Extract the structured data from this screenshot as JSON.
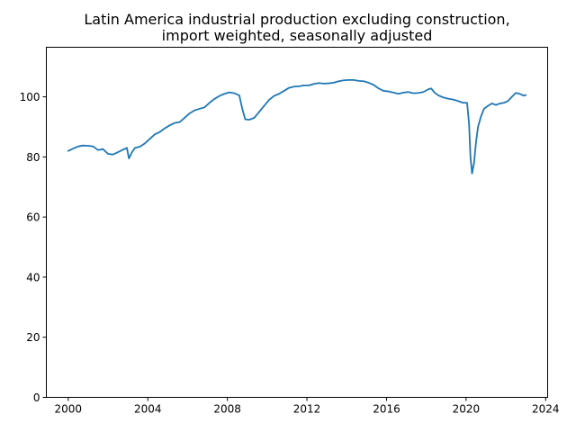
{
  "chart_data": {
    "type": "line",
    "title_lines": [
      "Latin America industrial production excluding construction,",
      "import weighted, seasonally adjusted"
    ],
    "xlabel": "",
    "ylabel": "",
    "xlim": [
      1998.9,
      2024.1
    ],
    "ylim": [
      0,
      116.5
    ],
    "x_ticks": [
      2000,
      2004,
      2008,
      2012,
      2016,
      2020,
      2024
    ],
    "x_tick_labels": [
      "2000",
      "2004",
      "2008",
      "2012",
      "2016",
      "2020",
      "2024"
    ],
    "y_ticks": [
      0,
      20,
      40,
      60,
      80,
      100
    ],
    "y_tick_labels": [
      "0",
      "20",
      "40",
      "60",
      "80",
      "100"
    ],
    "grid": false,
    "series": [
      {
        "color": "#1f77b4",
        "points": [
          [
            2000.0,
            82.0
          ],
          [
            2000.25,
            82.8
          ],
          [
            2000.5,
            83.5
          ],
          [
            2000.75,
            83.8
          ],
          [
            2001.0,
            83.7
          ],
          [
            2001.25,
            83.5
          ],
          [
            2001.5,
            82.3
          ],
          [
            2001.75,
            82.6
          ],
          [
            2002.0,
            81.0
          ],
          [
            2002.25,
            80.8
          ],
          [
            2002.5,
            81.6
          ],
          [
            2002.75,
            82.4
          ],
          [
            2002.95,
            83.0
          ],
          [
            2003.05,
            79.5
          ],
          [
            2003.2,
            81.5
          ],
          [
            2003.35,
            83.0
          ],
          [
            2003.6,
            83.4
          ],
          [
            2003.85,
            84.5
          ],
          [
            2004.1,
            86.0
          ],
          [
            2004.35,
            87.5
          ],
          [
            2004.6,
            88.3
          ],
          [
            2004.85,
            89.5
          ],
          [
            2005.1,
            90.5
          ],
          [
            2005.35,
            91.3
          ],
          [
            2005.6,
            91.6
          ],
          [
            2005.85,
            93.0
          ],
          [
            2006.1,
            94.5
          ],
          [
            2006.35,
            95.5
          ],
          [
            2006.6,
            96.0
          ],
          [
            2006.85,
            96.5
          ],
          [
            2007.1,
            98.0
          ],
          [
            2007.35,
            99.3
          ],
          [
            2007.6,
            100.3
          ],
          [
            2007.85,
            101.0
          ],
          [
            2008.1,
            101.5
          ],
          [
            2008.35,
            101.2
          ],
          [
            2008.6,
            100.5
          ],
          [
            2008.75,
            96.0
          ],
          [
            2008.9,
            92.5
          ],
          [
            2009.1,
            92.4
          ],
          [
            2009.35,
            93.0
          ],
          [
            2009.6,
            95.0
          ],
          [
            2009.85,
            97.0
          ],
          [
            2010.1,
            99.0
          ],
          [
            2010.35,
            100.3
          ],
          [
            2010.6,
            101.0
          ],
          [
            2010.85,
            102.0
          ],
          [
            2011.1,
            103.0
          ],
          [
            2011.35,
            103.4
          ],
          [
            2011.6,
            103.5
          ],
          [
            2011.85,
            103.8
          ],
          [
            2012.1,
            103.8
          ],
          [
            2012.35,
            104.3
          ],
          [
            2012.6,
            104.6
          ],
          [
            2012.85,
            104.4
          ],
          [
            2013.1,
            104.5
          ],
          [
            2013.35,
            104.7
          ],
          [
            2013.6,
            105.2
          ],
          [
            2013.85,
            105.5
          ],
          [
            2014.1,
            105.6
          ],
          [
            2014.35,
            105.6
          ],
          [
            2014.6,
            105.3
          ],
          [
            2014.85,
            105.2
          ],
          [
            2015.1,
            104.7
          ],
          [
            2015.35,
            104.0
          ],
          [
            2015.6,
            102.8
          ],
          [
            2015.85,
            102.0
          ],
          [
            2016.1,
            101.8
          ],
          [
            2016.35,
            101.4
          ],
          [
            2016.6,
            101.0
          ],
          [
            2016.85,
            101.4
          ],
          [
            2017.1,
            101.6
          ],
          [
            2017.35,
            101.2
          ],
          [
            2017.6,
            101.3
          ],
          [
            2017.85,
            101.6
          ],
          [
            2018.1,
            102.5
          ],
          [
            2018.25,
            102.8
          ],
          [
            2018.4,
            101.5
          ],
          [
            2018.6,
            100.5
          ],
          [
            2018.85,
            99.8
          ],
          [
            2019.1,
            99.4
          ],
          [
            2019.35,
            99.1
          ],
          [
            2019.6,
            98.6
          ],
          [
            2019.85,
            98.0
          ],
          [
            2020.05,
            98.0
          ],
          [
            2020.15,
            91.0
          ],
          [
            2020.22,
            80.0
          ],
          [
            2020.3,
            74.5
          ],
          [
            2020.4,
            78.0
          ],
          [
            2020.5,
            85.0
          ],
          [
            2020.6,
            90.0
          ],
          [
            2020.75,
            93.5
          ],
          [
            2020.9,
            96.0
          ],
          [
            2021.1,
            97.0
          ],
          [
            2021.3,
            97.8
          ],
          [
            2021.5,
            97.3
          ],
          [
            2021.7,
            97.8
          ],
          [
            2021.9,
            98.0
          ],
          [
            2022.1,
            98.6
          ],
          [
            2022.3,
            100.0
          ],
          [
            2022.5,
            101.3
          ],
          [
            2022.7,
            101.0
          ],
          [
            2022.9,
            100.4
          ],
          [
            2023.0,
            100.6
          ]
        ]
      }
    ]
  }
}
